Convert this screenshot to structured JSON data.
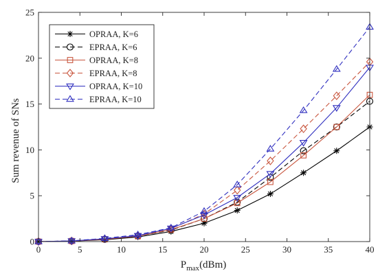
{
  "chart_data": {
    "type": "line",
    "xlabel": "P",
    "xlabel_sub": "max",
    "xlabel_unit": "(dBm)",
    "ylabel": "Sum revenue of SNs",
    "xlim": [
      0,
      40
    ],
    "ylim": [
      0,
      25
    ],
    "xticks": [
      0,
      5,
      10,
      15,
      20,
      25,
      30,
      35,
      40
    ],
    "yticks": [
      0,
      5,
      10,
      15,
      20,
      25
    ],
    "x": [
      0,
      4,
      8,
      12,
      16,
      20,
      24,
      28,
      32,
      36,
      40
    ],
    "grid": false,
    "legend_position": "top-left",
    "series": [
      {
        "name": "OPRAA, K=6",
        "color": "#000000",
        "dash": "solid",
        "marker": "asterisk",
        "values": [
          0,
          0.05,
          0.2,
          0.5,
          1.1,
          2.0,
          3.4,
          5.2,
          7.5,
          9.9,
          12.5
        ]
      },
      {
        "name": "EPRAA, K=6",
        "color": "#000000",
        "dash": "dashed",
        "marker": "circle",
        "values": [
          0,
          0.06,
          0.25,
          0.6,
          1.25,
          2.5,
          4.3,
          7.0,
          9.9,
          12.5,
          15.3
        ]
      },
      {
        "name": "OPRAA, K=8",
        "color": "#c8553d",
        "dash": "solid",
        "marker": "square",
        "values": [
          0,
          0.06,
          0.25,
          0.6,
          1.3,
          2.5,
          4.2,
          6.5,
          9.4,
          12.5,
          16.0
        ]
      },
      {
        "name": "EPRAA, K=8",
        "color": "#c8553d",
        "dash": "dashed",
        "marker": "diamond",
        "values": [
          0,
          0.07,
          0.3,
          0.65,
          1.4,
          3.0,
          5.6,
          8.8,
          12.3,
          15.9,
          19.6
        ]
      },
      {
        "name": "OPRAA, K=10",
        "color": "#2f2fbf",
        "dash": "solid",
        "marker": "triangle-down",
        "values": [
          0,
          0.07,
          0.3,
          0.65,
          1.45,
          2.9,
          4.8,
          7.4,
          10.8,
          14.6,
          19.0
        ]
      },
      {
        "name": "EPRAA, K=10",
        "color": "#2f2fbf",
        "dash": "dashed",
        "marker": "triangle-up",
        "values": [
          0,
          0.08,
          0.35,
          0.75,
          1.5,
          3.3,
          6.2,
          10.1,
          14.3,
          18.8,
          23.4
        ]
      }
    ]
  }
}
